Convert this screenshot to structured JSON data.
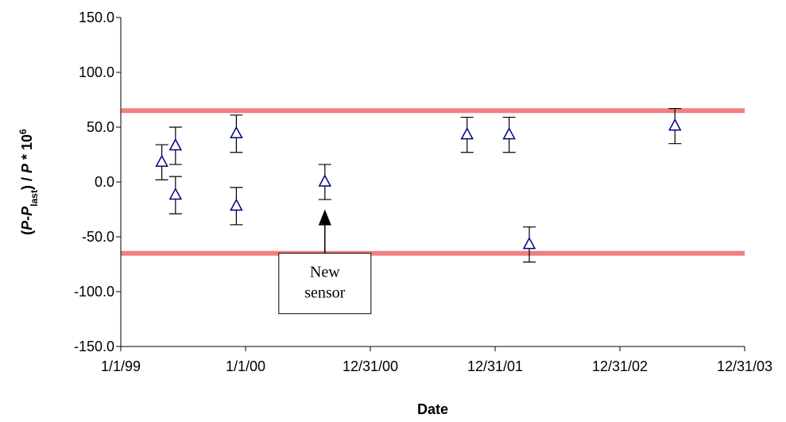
{
  "chart_data": {
    "type": "scatter",
    "xlabel": "Date",
    "ylabel": {
      "parts": [
        "(",
        "P",
        "-",
        "P",
        "last",
        ") / ",
        "P",
        " * 10",
        "6"
      ]
    },
    "xlim": [
      "1/1/99",
      "12/31/03"
    ],
    "ylim": [
      -150.0,
      150.0
    ],
    "x_ticks": [
      "1/1/99",
      "1/1/00",
      "12/31/00",
      "12/31/01",
      "12/31/02",
      "12/31/03"
    ],
    "y_ticks": [
      "150.0",
      "100.0",
      "50.0",
      "0.0",
      "-50.0",
      "-100.0",
      "-150.0"
    ],
    "grid": false,
    "series": [
      {
        "marker": "open-triangle",
        "color": "#000080",
        "points": [
          {
            "x": "5/1/99",
            "y": 18,
            "err": 16
          },
          {
            "x": "6/10/99",
            "y": 33,
            "err": 17
          },
          {
            "x": "6/10/99",
            "y": -12,
            "err": 17
          },
          {
            "x": "12/5/99",
            "y": 44,
            "err": 17
          },
          {
            "x": "12/5/99",
            "y": -22,
            "err": 17
          },
          {
            "x": "8/20/00",
            "y": 0,
            "err": 16
          },
          {
            "x": "10/10/01",
            "y": 43,
            "err": 16
          },
          {
            "x": "2/10/02",
            "y": 43,
            "err": 16
          },
          {
            "x": "4/10/02",
            "y": -57,
            "err": 16
          },
          {
            "x": "6/10/03",
            "y": 51,
            "err": 16
          }
        ]
      }
    ],
    "limits": [
      {
        "y": 65,
        "color": "#f08080"
      },
      {
        "y": -65,
        "color": "#f08080"
      }
    ],
    "annotation": {
      "lines": [
        "New",
        "sensor"
      ],
      "arrow_x": "8/20/00",
      "arrow_tip_y": -25
    }
  }
}
